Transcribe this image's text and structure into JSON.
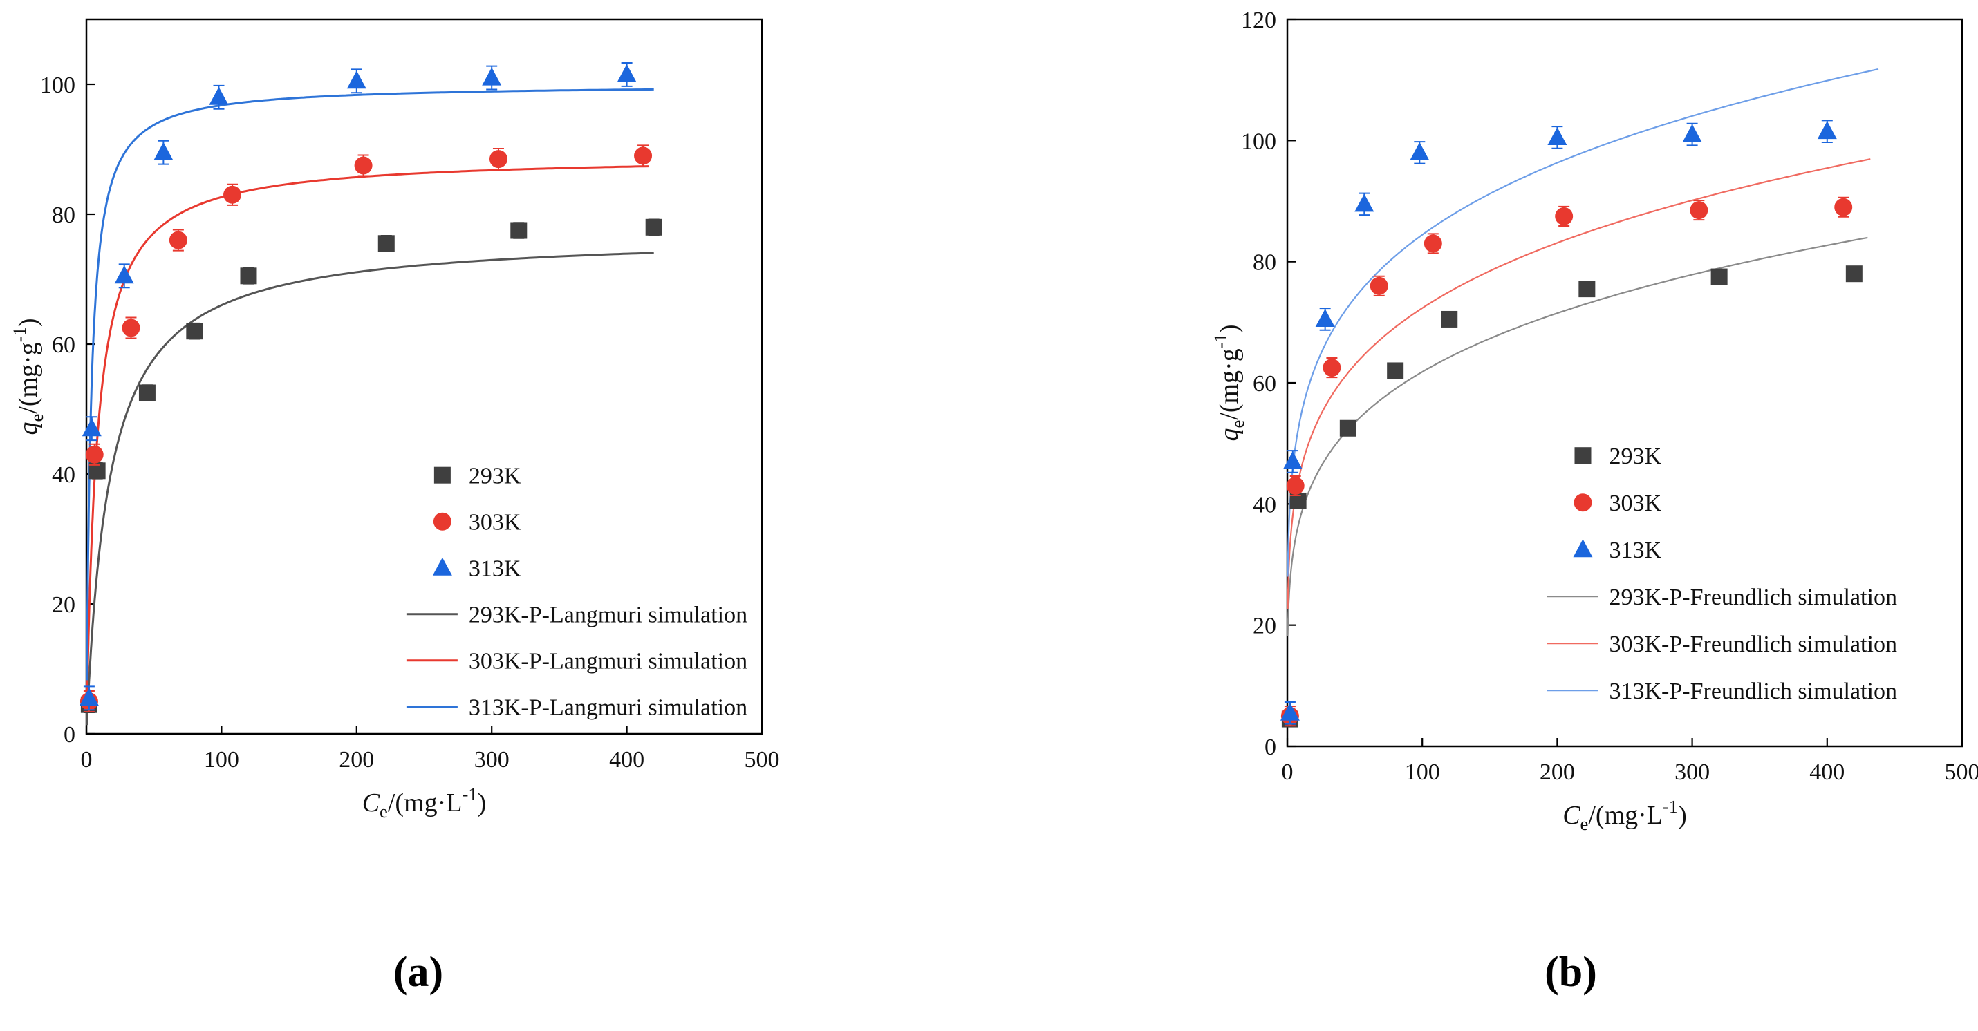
{
  "figure": {
    "captions": {
      "a": "(a)",
      "b": "(b)"
    }
  },
  "chart_data": [
    {
      "id": "a",
      "type": "scatter",
      "title": "",
      "xlabel": "Ce/(mg·L-1)",
      "ylabel": "qe/(mg·g-1)",
      "xlabel_segments": [
        {
          "t": "C",
          "italic": true
        },
        {
          "t": "e",
          "sub": true
        },
        {
          "t": "/(mg·L"
        },
        {
          "t": "-1",
          "sup": true
        },
        {
          "t": ")"
        }
      ],
      "ylabel_segments": [
        {
          "t": "q",
          "italic": true
        },
        {
          "t": "e",
          "sub": true
        },
        {
          "t": "/(mg·g"
        },
        {
          "t": "-1",
          "sup": true
        },
        {
          "t": ")"
        }
      ],
      "xlim": [
        0,
        500
      ],
      "ylim": [
        0,
        110
      ],
      "xticks": [
        0,
        100,
        200,
        300,
        400,
        500
      ],
      "yticks": [
        0,
        20,
        40,
        60,
        80,
        100
      ],
      "grid": false,
      "legend_position": "inside lower-right",
      "series": [
        {
          "name": "293K",
          "marker": "square",
          "color": "#3f3f3f",
          "err": 1.2,
          "points": [
            [
              2,
              4.5
            ],
            [
              8,
              40.5
            ],
            [
              45,
              52.5
            ],
            [
              80,
              62
            ],
            [
              120,
              70.5
            ],
            [
              222,
              75.5
            ],
            [
              320,
              77.5
            ],
            [
              420,
              78
            ]
          ]
        },
        {
          "name": "303K",
          "marker": "circle",
          "color": "#e8392f",
          "err": 1.6,
          "points": [
            [
              2,
              5
            ],
            [
              6,
              43
            ],
            [
              33,
              62.5
            ],
            [
              68,
              76
            ],
            [
              108,
              83
            ],
            [
              205,
              87.5
            ],
            [
              305,
              88.5
            ],
            [
              412,
              89
            ]
          ]
        },
        {
          "name": "313K",
          "marker": "triangle",
          "color": "#1b66dd",
          "err": 1.8,
          "points": [
            [
              2,
              5.5
            ],
            [
              4,
              47
            ],
            [
              28,
              70.5
            ],
            [
              57,
              89.5
            ],
            [
              98,
              98
            ],
            [
              200,
              100.5
            ],
            [
              300,
              101
            ],
            [
              400,
              101.5
            ]
          ]
        }
      ],
      "curves": [
        {
          "name": "293K-P-Langmuri simulation",
          "model": "langmuir",
          "qm": 77,
          "k": 0.06,
          "xmax": 420,
          "color": "#555555"
        },
        {
          "name": "303K-P-Langmuri simulation",
          "model": "langmuir",
          "qm": 89,
          "k": 0.13,
          "xmax": 416,
          "color": "#e8392f"
        },
        {
          "name": "313K-P-Langmuri simulation",
          "model": "langmuir",
          "qm": 100,
          "k": 0.3,
          "xmax": 420,
          "color": "#2e74d8"
        }
      ]
    },
    {
      "id": "b",
      "type": "scatter",
      "title": "",
      "xlabel": "Ce/(mg·L-1)",
      "ylabel": "qe/(mg·g-1)",
      "xlabel_segments": [
        {
          "t": "C",
          "italic": true
        },
        {
          "t": "e",
          "sub": true
        },
        {
          "t": "/(mg·L"
        },
        {
          "t": "-1",
          "sup": true
        },
        {
          "t": ")"
        }
      ],
      "ylabel_segments": [
        {
          "t": "q",
          "italic": true
        },
        {
          "t": "e",
          "sub": true
        },
        {
          "t": "/(mg·g"
        },
        {
          "t": "-1",
          "sup": true
        },
        {
          "t": ")"
        }
      ],
      "xlim": [
        0,
        500
      ],
      "ylim": [
        0,
        120
      ],
      "xticks": [
        0,
        100,
        200,
        300,
        400,
        500
      ],
      "yticks": [
        0,
        20,
        40,
        60,
        80,
        100,
        120
      ],
      "grid": false,
      "legend_position": "inside lower-right",
      "series": [
        {
          "name": "293K",
          "marker": "square",
          "color": "#3f3f3f",
          "err": 1.2,
          "points": [
            [
              2,
              4.5
            ],
            [
              8,
              40.5
            ],
            [
              45,
              52.5
            ],
            [
              80,
              62
            ],
            [
              120,
              70.5
            ],
            [
              222,
              75.5
            ],
            [
              320,
              77.5
            ],
            [
              420,
              78
            ]
          ]
        },
        {
          "name": "303K",
          "marker": "circle",
          "color": "#e8392f",
          "err": 1.6,
          "points": [
            [
              2,
              5
            ],
            [
              6,
              43
            ],
            [
              33,
              62.5
            ],
            [
              68,
              76
            ],
            [
              108,
              83
            ],
            [
              205,
              87.5
            ],
            [
              305,
              88.5
            ],
            [
              412,
              89
            ]
          ]
        },
        {
          "name": "313K",
          "marker": "triangle",
          "color": "#1b66dd",
          "err": 1.8,
          "points": [
            [
              2,
              5.5
            ],
            [
              4,
              47
            ],
            [
              28,
              70.5
            ],
            [
              57,
              89.5
            ],
            [
              98,
              98
            ],
            [
              200,
              100.5
            ],
            [
              300,
              101
            ],
            [
              400,
              101.5
            ]
          ]
        }
      ],
      "curves": [
        {
          "name": "293K-P-Freundlich simulation",
          "model": "freundlich",
          "kf": 23.5,
          "ninv": 0.21,
          "xmax": 430,
          "color": "#8a8a8a"
        },
        {
          "name": "303K-P-Freundlich simulation",
          "model": "freundlich",
          "kf": 28.8,
          "ninv": 0.2,
          "xmax": 432,
          "color": "#f06a60"
        },
        {
          "name": "313K-P-Freundlich simulation",
          "model": "freundlich",
          "kf": 35.2,
          "ninv": 0.19,
          "xmax": 438,
          "color": "#6d9ee8"
        }
      ]
    }
  ]
}
